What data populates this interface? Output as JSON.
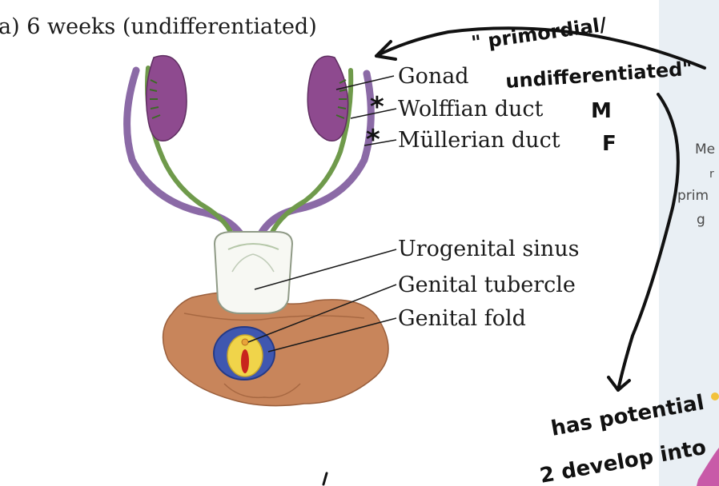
{
  "figure": {
    "title": "a)  6 weeks (undifferentiated)",
    "labels": [
      "Gonad",
      "Wolffian duct",
      "Müllerian duct",
      "Urogenital sinus",
      "Genital tubercle",
      "Genital fold"
    ]
  },
  "annotations": {
    "quote_line1": "\" primordial/",
    "quote_line2": "undifferentiated\"",
    "star_wolffian": "*",
    "star_mullerian": "*",
    "wolffian_letter": "M",
    "mullerian_letter": "F",
    "bottom_line1": "has potential",
    "bottom_line2": "2 develop into"
  },
  "side_panel": {
    "fragment1": "Me",
    "fragment2": "r",
    "fragment3": "prim",
    "fragment4": "g"
  },
  "colors": {
    "gonad": "#8e4a8f",
    "wolffian": "#6f9a4b",
    "mullerian": "#8b6aa6",
    "skin": "#c8855b",
    "fold_blue": "#3f57b0",
    "tubercle_yellow": "#f0d44a",
    "tubercle_red": "#c8241d",
    "panel_bg": "#e9eff4"
  }
}
